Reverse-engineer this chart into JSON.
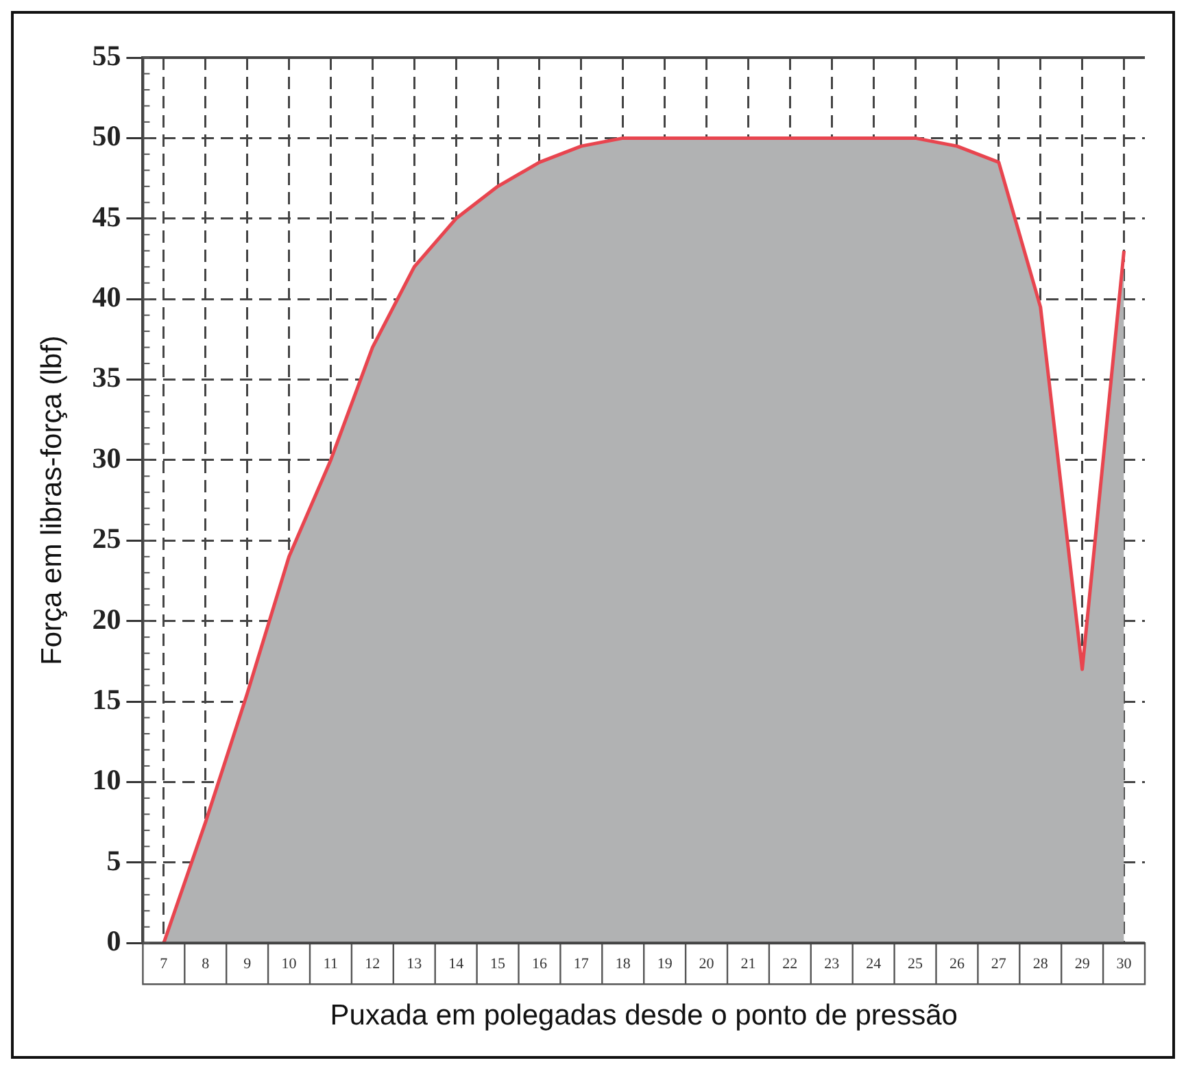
{
  "chart_data": {
    "type": "area",
    "xlabel": "Puxada em polegadas desde o ponto de pressão",
    "ylabel": "Força em libras-força (lbf)",
    "categories": [
      "7",
      "8",
      "9",
      "10",
      "11",
      "12",
      "13",
      "14",
      "15",
      "16",
      "17",
      "18",
      "19",
      "20",
      "21",
      "22",
      "23",
      "24",
      "25",
      "26",
      "27",
      "28",
      "29",
      "30"
    ],
    "series": [
      {
        "color": "#e8454f",
        "values": [
          0,
          7.5,
          15.5,
          24,
          30,
          37,
          42,
          45,
          47,
          48.5,
          49.5,
          50,
          50,
          50,
          50,
          50,
          50,
          50,
          50,
          49.5,
          48.5,
          39.5,
          17,
          43
        ]
      }
    ],
    "ylim": [
      0,
      55
    ],
    "yticks": [
      0,
      5,
      10,
      15,
      20,
      25,
      30,
      35,
      40,
      45,
      50,
      55
    ],
    "grid": true,
    "legend": false
  }
}
